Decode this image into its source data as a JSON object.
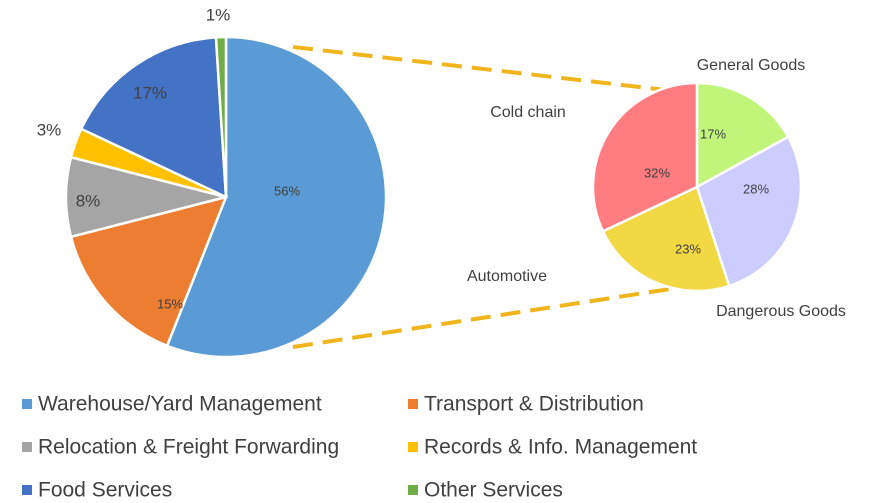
{
  "chart_data": [
    {
      "type": "pie",
      "categories": [
        "Warehouse/Yard Management",
        "Transport & Distribution",
        "Relocation & Freight Forwarding",
        "Records & Info. Management",
        "Food Services",
        "Other Services"
      ],
      "values": [
        56,
        15,
        8,
        3,
        17,
        1
      ],
      "value_labels": [
        "56%",
        "15%",
        "8%",
        "3%",
        "17%",
        "1%"
      ],
      "colors": [
        "#5b9bd5",
        "#ed7d31",
        "#a5a5a5",
        "#ffc000",
        "#4472c4",
        "#70ad47"
      ],
      "legend": "bottom"
    },
    {
      "type": "pie",
      "categories": [
        "General Goods",
        "Dangerous Goods",
        "Automotive",
        "Cold chain"
      ],
      "values": [
        17,
        28,
        23,
        32
      ],
      "value_labels": [
        "17%",
        "28%",
        "23%",
        "32%"
      ],
      "colors": [
        "#c0f57a",
        "#ccccff",
        "#f2d843",
        "#ff7c80"
      ]
    }
  ]
}
